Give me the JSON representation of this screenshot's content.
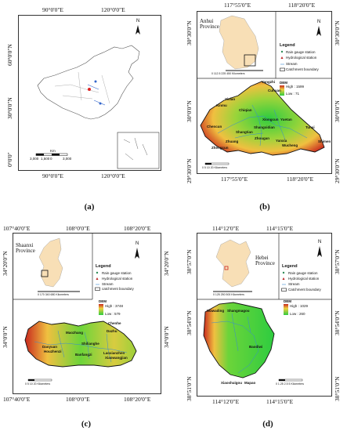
{
  "panel_a": {
    "caption": "(a)",
    "top_ticks": [
      "90°0'0\"E",
      "120°0'0\"E"
    ],
    "bottom_ticks": [
      "90°0'0\"E",
      "120°0'0\"E"
    ],
    "left_ticks": [
      "60°0'0\"N",
      "30°0'0\"N",
      "0°0'0\""
    ],
    "north": "N",
    "scale_unit": "Km",
    "scale_labels": [
      "3,000",
      "1,500",
      "0",
      "3,000"
    ]
  },
  "panel_b": {
    "caption": "(b)",
    "top_ticks": [
      "117°55'0\"E",
      "118°20'0\"E"
    ],
    "bottom_ticks": [
      "117°55'0\"E",
      "118°20'0\"E"
    ],
    "left_ticks": [
      "30°30'0\"N",
      "30°0'0\"N",
      "29°30'0\"N"
    ],
    "right_ticks": [
      "30°30'0\"N",
      "30°0'0\"N",
      "29°30'0\"N"
    ],
    "province": "Anhui Province",
    "north": "N",
    "legend_title": "Legend",
    "legend_items": [
      "Rain gauge station",
      "Hydrological station",
      "Stream",
      "Catchment boundary"
    ],
    "dem_title": "DEM",
    "dem_high": "High : 1599",
    "dem_low": "Low : 71",
    "inset_scale": "0  112.5  225      450 Kilometers",
    "map_scale": "0   5   10        20 Kilometers",
    "places": [
      "Yangzhi",
      "Yixian",
      "Xinmu",
      "Chiqian",
      "Chencun",
      "Shangtian",
      "Xiongcun",
      "Shangxidian",
      "Zhuang",
      "Zhougan",
      "Yanxia",
      "Wucheng",
      "Tunxi",
      "Shimen",
      "Yuetan",
      "Cuhuan",
      "Zhengcun"
    ]
  },
  "panel_c": {
    "caption": "(c)",
    "top_ticks": [
      "107°40'0\"E",
      "108°0'0\"E",
      "108°20'0\"E"
    ],
    "bottom_ticks": [
      "107°40'0\"E",
      "108°0'0\"E",
      "108°20'0\"E"
    ],
    "left_ticks": [
      "34°20'0\"N",
      "34°0'0\"N"
    ],
    "right_ticks": [
      "34°20'0\"N",
      "34°0'0\"N"
    ],
    "province": "Shaanxi Province",
    "north": "N",
    "legend_title": "Legend",
    "legend_items": [
      "Rain gauge station",
      "Hydrological station",
      "Stream",
      "catchment boundary"
    ],
    "dem_title": "DEM",
    "dem_high": "High : 3748",
    "dem_low": "Low : 579",
    "inset_scale": "0   170   340          680 Kilometers",
    "map_scale": "0   5  10       20 Kilometers",
    "places": [
      "Chenhe",
      "Maozhang",
      "Dazhu",
      "Shilianghe",
      "Daoyuan",
      "Houzhenzi",
      "Banfangzi",
      "Laoxianzhen",
      "Xiaowangjian"
    ]
  },
  "panel_d": {
    "caption": "(d)",
    "top_ticks": [
      "114°12'0\"E",
      "114°15'0\"E"
    ],
    "bottom_ticks": [
      "114°12'0\"E",
      "114°15'0\"E"
    ],
    "left_ticks": [
      "38°57'0\"N",
      "38°54'0\"N",
      "38°51'0\"N"
    ],
    "right_ticks": [
      "38°57'0\"N",
      "38°54'0\"N",
      "38°51'0\"N"
    ],
    "province": "Hebei Province",
    "north": "N",
    "legend_title": "Legend",
    "legend_items": [
      "Rain gauge station",
      "Hydrological station",
      "Stream",
      "Catchment boundary"
    ],
    "dem_title": "DEM",
    "dem_high": "High : 1029",
    "dem_low": "Low : 260",
    "inset_scale": "0   125  250        500 Kilometers",
    "map_scale": "0  1.25  2.5        5 Kilometers",
    "places": [
      "Wawading",
      "Shangmagou",
      "Baodiwi",
      "Xiaoshuigou",
      "Mapao"
    ]
  },
  "colors": {
    "dem_high": "#c8281e",
    "dem_mid": "#f0d040",
    "dem_low": "#2ecc40",
    "stream": "#3a8ad0",
    "boundary": "#111111"
  }
}
